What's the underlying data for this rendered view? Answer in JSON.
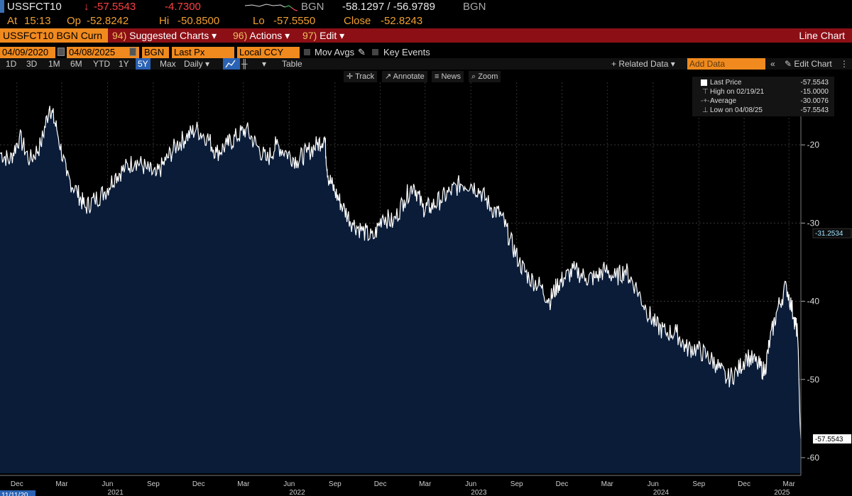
{
  "quote": {
    "ticker": "USSFCT10",
    "arrow": "↓",
    "last": "-57.5543",
    "change": "-4.7300",
    "source1": "BGN",
    "bid_ask": "-58.1297 / -56.9789",
    "source2": "BGN",
    "at_label": "At",
    "time": "15:13",
    "op_label": "Op",
    "open": "-52.8242",
    "hi_label": "Hi",
    "high": "-50.8500",
    "lo_label": "Lo",
    "low": "-57.5550",
    "close_label": "Close",
    "close": "-52.8243"
  },
  "menubar": {
    "ticker_label": "USSFCT10 BGN Curn",
    "items": [
      {
        "num": "94)",
        "label": "Suggested Charts ▾"
      },
      {
        "num": "96)",
        "label": "Actions ▾"
      },
      {
        "num": "97)",
        "label": "Edit ▾"
      }
    ],
    "title": "Line Chart"
  },
  "settings": {
    "start_date": "04/09/2020",
    "end_date": "04/08/2025",
    "source": "BGN",
    "field": "Last Px",
    "currency": "Local CCY",
    "mov_avgs": "Mov Avgs",
    "key_events": "Key Events"
  },
  "periods": {
    "items": [
      "1D",
      "3D",
      "1M",
      "6M",
      "YTD",
      "1Y",
      "5Y",
      "Max"
    ],
    "active": "5Y",
    "frequency": "Daily ▾",
    "table": "Table",
    "related": "+ Related Data ▾",
    "add_data_placeholder": "Add Data",
    "edit_chart": "Edit Chart"
  },
  "toolbar": {
    "track": "Track",
    "annotate": "Annotate",
    "news": "News",
    "zoom": "Zoom"
  },
  "legend": {
    "items": [
      {
        "name": "Last Price",
        "value": "-57.5543"
      },
      {
        "name": "High on 02/19/21",
        "value": "-15.0000"
      },
      {
        "name": "Average",
        "value": "-30.0076"
      },
      {
        "name": "Low on 04/08/25",
        "value": "-57.5543"
      }
    ]
  },
  "colors": {
    "accent_orange": "#f08a1e",
    "menu_red": "#8c0f16",
    "area_fill": "#0a1c38",
    "line": "#ffffff",
    "label_cyan": "#9fe3ff"
  },
  "chart_data": {
    "type": "area",
    "title": "",
    "ylabel": "",
    "xlabel": "",
    "ylim": [
      -62,
      -12
    ],
    "yticks": [
      -20,
      -30,
      -40,
      -50,
      -60
    ],
    "ytick_labels": [
      "-20",
      "-30",
      "-40",
      "-50",
      "-60"
    ],
    "x_start": "2020-11-11",
    "x_end": "2025-04-08",
    "start_date_label": "11/11/20",
    "month_ticks": [
      {
        "label": "Dec",
        "date": "2020-12-15"
      },
      {
        "label": "Mar",
        "date": "2021-03-15"
      },
      {
        "label": "Jun",
        "date": "2021-06-15"
      },
      {
        "label": "Sep",
        "date": "2021-09-15"
      },
      {
        "label": "Dec",
        "date": "2021-12-15"
      },
      {
        "label": "Mar",
        "date": "2022-03-15"
      },
      {
        "label": "Jun",
        "date": "2022-06-15"
      },
      {
        "label": "Sep",
        "date": "2022-09-15"
      },
      {
        "label": "Dec",
        "date": "2022-12-15"
      },
      {
        "label": "Mar",
        "date": "2023-03-15"
      },
      {
        "label": "Jun",
        "date": "2023-06-15"
      },
      {
        "label": "Sep",
        "date": "2023-09-15"
      },
      {
        "label": "Dec",
        "date": "2023-12-15"
      },
      {
        "label": "Mar",
        "date": "2024-03-15"
      },
      {
        "label": "Jun",
        "date": "2024-06-15"
      },
      {
        "label": "Sep",
        "date": "2024-09-15"
      },
      {
        "label": "Dec",
        "date": "2024-12-15"
      },
      {
        "label": "Mar",
        "date": "2025-03-15"
      }
    ],
    "year_ticks": [
      {
        "label": "2021",
        "date": "2021-07-01"
      },
      {
        "label": "2022",
        "date": "2022-07-01"
      },
      {
        "label": "2023",
        "date": "2023-07-01"
      },
      {
        "label": "2024",
        "date": "2024-07-01"
      },
      {
        "label": "2025",
        "date": "2025-03-01"
      }
    ],
    "series": [
      {
        "dates": [
          "2020-11-11",
          "2020-12-01",
          "2020-12-20",
          "2021-01-10",
          "2021-02-01",
          "2021-02-19",
          "2021-03-05",
          "2021-03-25",
          "2021-04-15",
          "2021-05-01",
          "2021-05-20",
          "2021-06-10",
          "2021-06-30",
          "2021-07-20",
          "2021-08-10",
          "2021-09-01",
          "2021-09-20",
          "2021-10-10",
          "2021-11-01",
          "2021-11-20",
          "2021-12-10",
          "2022-01-01",
          "2022-01-20",
          "2022-02-10",
          "2022-03-01",
          "2022-03-20",
          "2022-04-10",
          "2022-05-01",
          "2022-05-20",
          "2022-06-10",
          "2022-07-01",
          "2022-07-20",
          "2022-08-10",
          "2022-08-25",
          "2022-09-01",
          "2022-09-15",
          "2022-10-01",
          "2022-10-20",
          "2022-11-10",
          "2022-12-01",
          "2022-12-20",
          "2023-01-10",
          "2023-02-01",
          "2023-02-20",
          "2023-03-10",
          "2023-03-25",
          "2023-04-15",
          "2023-05-05",
          "2023-05-25",
          "2023-06-15",
          "2023-07-05",
          "2023-07-25",
          "2023-08-15",
          "2023-09-01",
          "2023-09-20",
          "2023-10-10",
          "2023-11-01",
          "2023-11-20",
          "2023-12-05",
          "2023-12-20",
          "2024-01-10",
          "2024-02-01",
          "2024-02-20",
          "2024-03-10",
          "2024-04-01",
          "2024-04-20",
          "2024-05-10",
          "2024-06-01",
          "2024-06-20",
          "2024-07-10",
          "2024-08-01",
          "2024-08-20",
          "2024-09-10",
          "2024-10-01",
          "2024-10-20",
          "2024-11-10",
          "2024-12-01",
          "2024-12-20",
          "2025-01-10",
          "2025-01-25",
          "2025-02-05",
          "2025-02-20",
          "2025-03-10",
          "2025-03-25",
          "2025-04-01",
          "2025-04-08"
        ],
        "values": [
          -21,
          -22,
          -19,
          -22,
          -20,
          -15,
          -18,
          -24,
          -26,
          -28,
          -27,
          -26,
          -24,
          -23,
          -22,
          -23,
          -24,
          -22,
          -20,
          -19,
          -18,
          -19,
          -21,
          -20,
          -19,
          -18,
          -20,
          -22,
          -20,
          -21,
          -22,
          -21,
          -20,
          -19,
          -24,
          -26,
          -28,
          -30,
          -31,
          -32,
          -29,
          -30,
          -27,
          -25,
          -28,
          -28,
          -27,
          -26,
          -25,
          -25,
          -26,
          -28,
          -29,
          -32,
          -35,
          -37,
          -38,
          -40,
          -38,
          -37,
          -36,
          -37,
          -37,
          -36,
          -37,
          -36,
          -38,
          -41,
          -43,
          -44,
          -44,
          -46,
          -46,
          -47,
          -48,
          -50,
          -49,
          -47,
          -48,
          -49,
          -45,
          -41,
          -38,
          -42,
          -44,
          -57.55
        ]
      }
    ],
    "value_labels": [
      "-31.2534",
      "-57.5543"
    ],
    "value_label_levels": [
      -31.2534,
      -57.5543
    ]
  }
}
